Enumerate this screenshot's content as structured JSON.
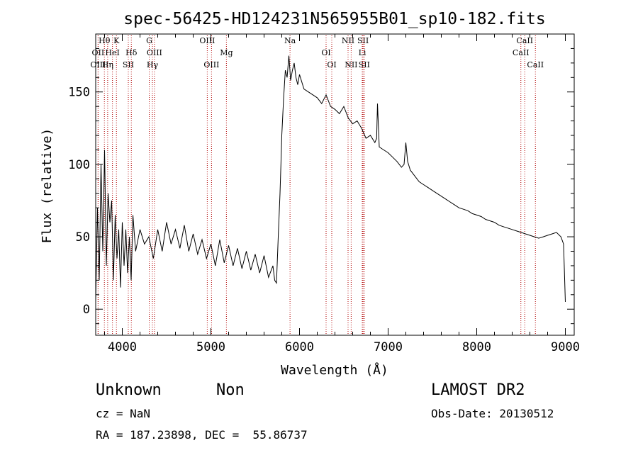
{
  "chart_data": {
    "type": "line",
    "title": "spec-56425-HD124231N565955B01_sp10-182.fits",
    "xlabel": "Wavelength (Å)",
    "ylabel": "Flux (relative)",
    "xlim": [
      3700,
      9100
    ],
    "ylim": [
      -18,
      190
    ],
    "xticks": [
      4000,
      5000,
      6000,
      7000,
      8000,
      9000
    ],
    "yticks": [
      0,
      50,
      100,
      150
    ],
    "series": [
      {
        "x": [
          3700,
          3720,
          3740,
          3760,
          3780,
          3800,
          3820,
          3840,
          3860,
          3880,
          3900,
          3920,
          3940,
          3960,
          3980,
          4000,
          4020,
          4040,
          4060,
          4080,
          4100,
          4120,
          4150,
          4200,
          4250,
          4300,
          4350,
          4400,
          4450,
          4500,
          4550,
          4600,
          4650,
          4700,
          4750,
          4800,
          4850,
          4900,
          4950,
          5000,
          5050,
          5100,
          5150,
          5200,
          5250,
          5300,
          5350,
          5400,
          5450,
          5500,
          5550,
          5600,
          5650,
          5700,
          5720,
          5740,
          5760,
          5780,
          5790,
          5800,
          5820,
          5840,
          5860,
          5880,
          5900,
          5920,
          5940,
          5960,
          5980,
          6000,
          6050,
          6100,
          6150,
          6200,
          6250,
          6300,
          6350,
          6400,
          6450,
          6500,
          6550,
          6600,
          6650,
          6700,
          6750,
          6800,
          6850,
          6870,
          6880,
          6900,
          6950,
          7000,
          7050,
          7100,
          7150,
          7180,
          7200,
          7220,
          7250,
          7300,
          7350,
          7400,
          7450,
          7500,
          7550,
          7600,
          7650,
          7700,
          7750,
          7800,
          7850,
          7900,
          7950,
          8000,
          8050,
          8100,
          8150,
          8200,
          8250,
          8300,
          8350,
          8400,
          8450,
          8500,
          8550,
          8600,
          8650,
          8700,
          8750,
          8800,
          8850,
          8900,
          8950,
          8980,
          9000
        ],
        "y": [
          5,
          70,
          20,
          100,
          40,
          110,
          30,
          80,
          60,
          75,
          20,
          65,
          35,
          55,
          15,
          60,
          30,
          55,
          25,
          50,
          20,
          65,
          40,
          55,
          45,
          50,
          35,
          55,
          40,
          60,
          45,
          55,
          42,
          58,
          40,
          52,
          38,
          48,
          35,
          45,
          30,
          48,
          32,
          44,
          30,
          42,
          28,
          40,
          27,
          38,
          25,
          37,
          22,
          30,
          20,
          18,
          50,
          80,
          100,
          120,
          145,
          165,
          160,
          175,
          158,
          165,
          170,
          160,
          155,
          162,
          152,
          150,
          148,
          146,
          142,
          148,
          140,
          138,
          135,
          140,
          132,
          128,
          130,
          125,
          118,
          120,
          115,
          118,
          142,
          112,
          110,
          108,
          105,
          102,
          98,
          100,
          115,
          102,
          96,
          92,
          88,
          86,
          84,
          82,
          80,
          78,
          76,
          74,
          72,
          70,
          69,
          68,
          66,
          65,
          64,
          62,
          61,
          60,
          58,
          57,
          56,
          55,
          54,
          53,
          52,
          51,
          50,
          49,
          50,
          51,
          52,
          53,
          50,
          45,
          5
        ]
      }
    ],
    "lines": [
      {
        "label": "Hθ",
        "x": 3798,
        "row": 1,
        "style": "dotted"
      },
      {
        "label": "K",
        "x": 3934,
        "row": 1,
        "style": "dotted"
      },
      {
        "label": "G",
        "x": 4304,
        "row": 1,
        "style": "dotted"
      },
      {
        "label": "OIII",
        "x": 4959,
        "row": 1,
        "style": "dotted"
      },
      {
        "label": "Na",
        "x": 5893,
        "row": 1,
        "style": "dotted"
      },
      {
        "label": "NII",
        "x": 6548,
        "row": 1,
        "style": "dotted"
      },
      {
        "label": "SII",
        "x": 6717,
        "row": 1,
        "style": "dotted"
      },
      {
        "label": "CaII",
        "x": 8542,
        "row": 1,
        "style": "dotted"
      },
      {
        "label": "OII",
        "x": 3727,
        "row": 2,
        "style": "dotted"
      },
      {
        "label": "HeI",
        "x": 3889,
        "row": 2,
        "style": "dotted"
      },
      {
        "label": "Hδ",
        "x": 4102,
        "row": 2,
        "style": "dotted"
      },
      {
        "label": "OIII",
        "x": 4363,
        "row": 2,
        "style": "dotted"
      },
      {
        "label": "Mg",
        "x": 5175,
        "row": 2,
        "style": "dotted"
      },
      {
        "label": "OI",
        "x": 6300,
        "row": 2,
        "style": "dotted"
      },
      {
        "label": "Li",
        "x": 6708,
        "row": 2,
        "style": "dotted"
      },
      {
        "label": "CaII",
        "x": 8498,
        "row": 2,
        "style": "dotted"
      },
      {
        "label": "OIII",
        "x": 3727,
        "row": 3,
        "style": "dotted"
      },
      {
        "label": "Hη",
        "x": 3835,
        "row": 3,
        "style": "dotted"
      },
      {
        "label": "SII",
        "x": 4068,
        "row": 3,
        "style": "dotted"
      },
      {
        "label": "Hγ",
        "x": 4340,
        "row": 3,
        "style": "dotted"
      },
      {
        "label": "OIII",
        "x": 5007,
        "row": 3,
        "style": "dotted"
      },
      {
        "label": "OI",
        "x": 6364,
        "row": 3,
        "style": "dotted"
      },
      {
        "label": "NII",
        "x": 6583,
        "row": 3,
        "style": "dotted"
      },
      {
        "label": "SII",
        "x": 6731,
        "row": 3,
        "style": "dotted"
      },
      {
        "label": "CaII",
        "x": 8662,
        "row": 3,
        "style": "dotted"
      }
    ],
    "line_color": "#000000",
    "marker_color": "#b00000"
  },
  "footer": {
    "object_class": "Unknown",
    "object_subclass": "Non",
    "survey": "LAMOST DR2",
    "cz": "cz = NaN",
    "obs_date": "Obs-Date: 20130512",
    "coords": "RA = 187.23898, DEC =  55.86737"
  }
}
